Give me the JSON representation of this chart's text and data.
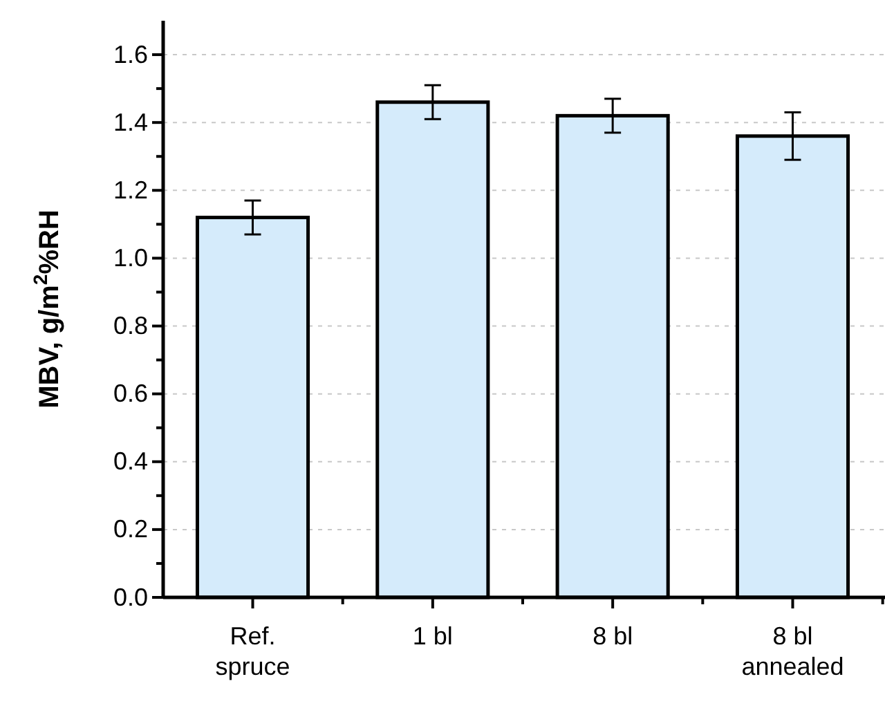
{
  "chart_data": {
    "type": "bar",
    "ylabel": "MBV, g/m$^{2}$%RH",
    "categories": [
      "Ref.\nspruce",
      "1 bl",
      "8 bl",
      "8 bl\nannealed"
    ],
    "values": [
      1.12,
      1.46,
      1.42,
      1.36
    ],
    "errors": [
      0.05,
      0.05,
      0.05,
      [
        1.29,
        1.43
      ]
    ],
    "color": "#d5ebfb",
    "ylim": [
      0,
      1.7
    ],
    "yticks": [
      {
        "value": 0,
        "label": "0.0"
      },
      0.2,
      0.4,
      0.6,
      0.8,
      {
        "value": 1,
        "label": "1.0"
      },
      1.2,
      1.4,
      1.6
    ],
    "grid": "y"
  }
}
